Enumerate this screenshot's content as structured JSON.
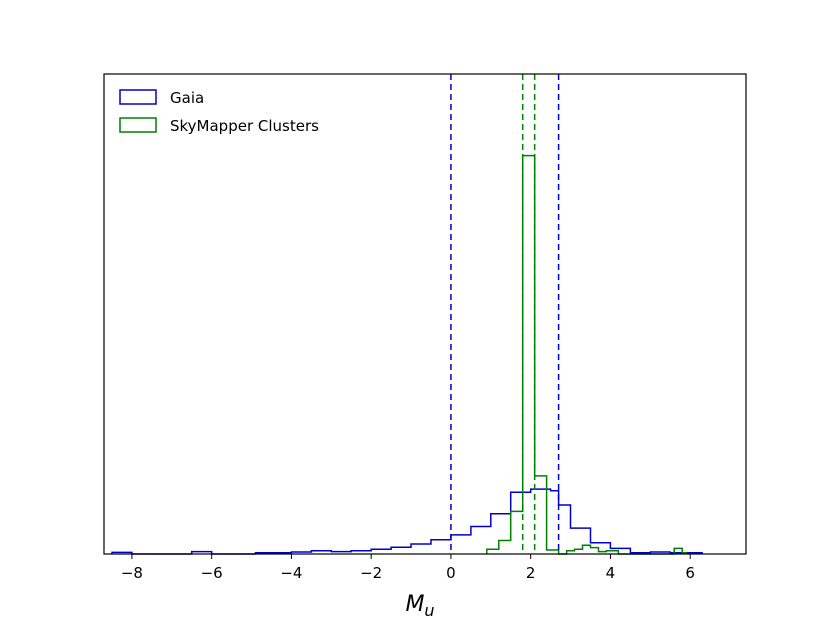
{
  "chart_data": {
    "type": "histogram",
    "xlabel": "M",
    "xlabel_subscript": "u",
    "xlim": [
      -8.7,
      7.4
    ],
    "ylim": [
      0,
      100
    ],
    "y_ticks_shown": false,
    "x_ticks": [
      "−8",
      "−6",
      "−4",
      "−2",
      "0",
      "2",
      "4",
      "6"
    ],
    "x_tick_values": [
      -8,
      -6,
      -4,
      -2,
      0,
      2,
      4,
      6
    ],
    "legend_position": "top-left",
    "series": [
      {
        "name": "Gaia",
        "color": "#0000cc",
        "bin_edges": [
          -8.5,
          -8.0,
          -6.5,
          -6.0,
          -4.9,
          -4.5,
          -4.0,
          -3.5,
          -3.0,
          -2.5,
          -2.0,
          -1.5,
          -1.0,
          -0.5,
          0.0,
          0.5,
          1.0,
          1.5,
          2.0,
          2.5,
          2.7,
          3.0,
          3.5,
          4.0,
          4.5,
          5.0,
          5.5,
          6.0,
          6.3
        ],
        "counts": [
          0.4,
          0,
          0.6,
          0,
          0.3,
          0.3,
          0.5,
          0.8,
          0.6,
          0.8,
          1.2,
          1.7,
          2.5,
          3.6,
          4.8,
          6.9,
          10.1,
          15.5,
          16.3,
          15.9,
          12.3,
          6.5,
          2.8,
          1.4,
          0.3,
          0.5,
          0.3,
          0.3
        ]
      },
      {
        "name": "SkyMapper Clusters",
        "color": "#008000",
        "bin_edges": [
          0.9,
          1.2,
          1.5,
          1.8,
          2.1,
          2.4,
          2.7,
          2.9,
          3.1,
          3.3,
          3.5,
          3.7,
          3.9,
          4.2,
          5.6,
          5.8,
          5.9
        ],
        "counts": [
          1.2,
          3.4,
          10.7,
          100,
          19.6,
          1.0,
          0,
          0.8,
          1.2,
          2.2,
          1.6,
          0.6,
          0.8,
          0,
          1.4,
          0.3
        ]
      }
    ],
    "vertical_lines": [
      {
        "x": 0.0,
        "series": "Gaia",
        "color": "#0000cc",
        "style": "dashed"
      },
      {
        "x": 2.7,
        "series": "Gaia",
        "color": "#0000cc",
        "style": "dashed"
      },
      {
        "x": 1.8,
        "series": "SkyMapper Clusters",
        "color": "#008000",
        "style": "dashed"
      },
      {
        "x": 2.1,
        "series": "SkyMapper Clusters",
        "color": "#008000",
        "style": "dashed"
      }
    ]
  }
}
